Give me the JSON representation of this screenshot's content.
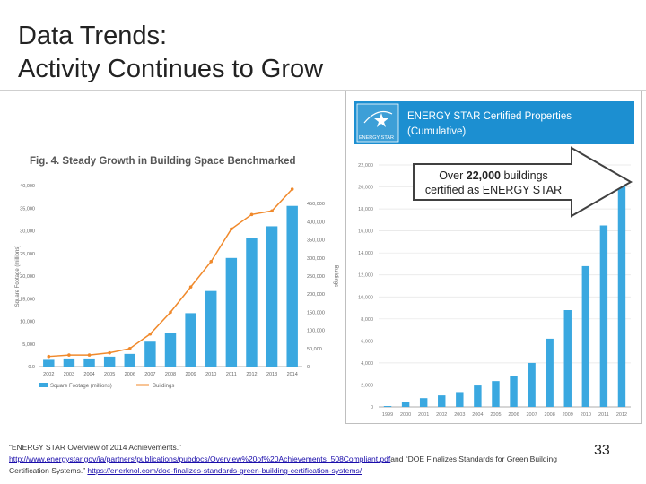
{
  "slide": {
    "title_line1": "Data Trends:",
    "title_line2": "Activity Continues to Grow",
    "page_number": "33"
  },
  "callout": {
    "prefix": "Over ",
    "highlight": "22,000",
    "suffix": " buildings",
    "line2": "certified as ENERGY STAR"
  },
  "citation": {
    "part1": "“ENERGY STAR Overview of 2014 Achievements.”",
    "link1": "http://www.energystar.gov/ia/partners/publications/pubdocs/Overview%20of%20Achievements_508Compliant.pdf",
    "part2": "and “DOE Finalizes Standards for Green Building Certification Systems.”",
    "link2": "https://enerknol.com/doe-finalizes-standards-green-building-certification-systems/"
  },
  "colors": {
    "bar_blue": "#3aa8e0",
    "line_orange": "#f0892b",
    "estar_blue": "#1c8fd1"
  },
  "icons": [
    "energy-star-logo",
    "arrow-right-callout"
  ],
  "chart_data": [
    {
      "type": "bar",
      "title": "Fig. 4.  Steady Growth in Building Space Benchmarked",
      "categories": [
        "2002",
        "2003",
        "2004",
        "2005",
        "2006",
        "2007",
        "2008",
        "2009",
        "2010",
        "2011",
        "2012",
        "2013",
        "2014"
      ],
      "series": [
        {
          "name": "Square Footage (millions)",
          "type": "bar",
          "axis": "left",
          "values": [
            1500,
            1800,
            1800,
            2200,
            2800,
            5500,
            7500,
            11800,
            16700,
            24000,
            28500,
            31000,
            35500
          ]
        },
        {
          "name": "Buildings",
          "type": "line",
          "axis": "right",
          "values": [
            28000,
            32000,
            32000,
            38000,
            50000,
            90000,
            150000,
            220000,
            290000,
            380000,
            420000,
            430000,
            490000
          ]
        }
      ],
      "ylabel": "Square Footage (millions)",
      "y2label": "Buildings",
      "ylim": [
        0,
        40000
      ],
      "y2lim": [
        0,
        500000
      ],
      "yticks": [
        "0.0",
        "5,000",
        "10,000",
        "15,000",
        "20,000",
        "25,000",
        "30,000",
        "35,000",
        "40,000"
      ],
      "y2ticks": [
        "0",
        "50,000",
        "100,000",
        "150,000",
        "200,000",
        "250,000",
        "300,000",
        "350,000",
        "400,000",
        "450,000"
      ],
      "legend": "bottom-left",
      "grid": false
    },
    {
      "type": "bar",
      "title": "ENERGY STAR Certified Properties (Cumulative)",
      "title_line1": "ENERGY STAR Certified Properties",
      "title_line2": "(Cumulative)",
      "logo_text": "ENERGY STAR",
      "categories": [
        "1999",
        "2000",
        "2001",
        "2002",
        "2003",
        "2004",
        "2005",
        "2006",
        "2007",
        "2008",
        "2009",
        "2010",
        "2011",
        "2012"
      ],
      "values": [
        80,
        450,
        800,
        1050,
        1350,
        1950,
        2350,
        2800,
        4000,
        6200,
        8800,
        12800,
        16500,
        20500
      ],
      "yticks": [
        "0",
        "2,000",
        "4,000",
        "6,000",
        "8,000",
        "10,000",
        "12,000",
        "14,000",
        "16,000",
        "18,000",
        "20,000",
        "22,000"
      ],
      "ylim": [
        0,
        22000
      ],
      "grid": true
    }
  ]
}
